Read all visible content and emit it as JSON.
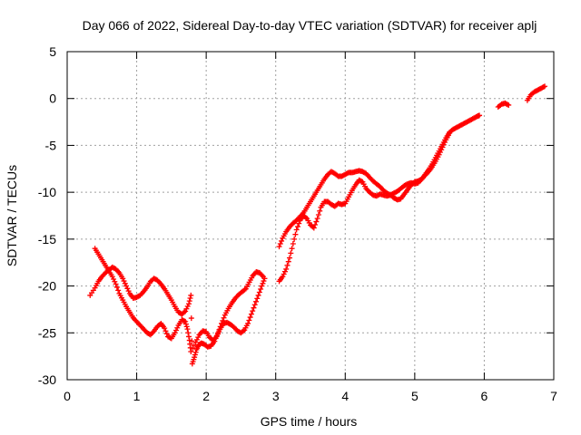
{
  "chart_data": {
    "type": "scatter",
    "title": "Day 066 of 2022, Sidereal Day-to-day VTEC variation (SDTVAR) for receiver aplj",
    "xlabel": "GPS time / hours",
    "ylabel": "SDTVAR / TECUs",
    "xlim": [
      0,
      7
    ],
    "ylim": [
      -30,
      5
    ],
    "xticks": [
      0,
      1,
      2,
      3,
      4,
      5,
      6,
      7
    ],
    "yticks": [
      5,
      0,
      -5,
      -10,
      -15,
      -20,
      -25,
      -30
    ],
    "grid": true,
    "marker": "plus",
    "series_color": "#ff0000",
    "series": [
      {
        "points": [
          [
            0.33,
            -21.0
          ],
          [
            0.4,
            -20.2
          ],
          [
            0.45,
            -19.5
          ],
          [
            0.5,
            -19.0
          ],
          [
            0.55,
            -18.6
          ],
          [
            0.6,
            -18.3
          ],
          [
            0.65,
            -18.0
          ],
          [
            0.7,
            -18.2
          ],
          [
            0.75,
            -18.6
          ],
          [
            0.8,
            -19.2
          ],
          [
            0.85,
            -20.0
          ],
          [
            0.9,
            -20.8
          ],
          [
            0.95,
            -21.3
          ],
          [
            1.0,
            -21.2
          ],
          [
            1.05,
            -21.0
          ],
          [
            1.1,
            -20.6
          ],
          [
            1.15,
            -20.1
          ],
          [
            1.2,
            -19.5
          ],
          [
            1.25,
            -19.2
          ],
          [
            1.3,
            -19.4
          ],
          [
            1.35,
            -19.8
          ],
          [
            1.4,
            -20.3
          ],
          [
            1.45,
            -20.9
          ],
          [
            1.5,
            -21.5
          ],
          [
            1.55,
            -22.2
          ],
          [
            1.6,
            -22.8
          ],
          [
            1.65,
            -23.0
          ],
          [
            1.7,
            -22.7
          ],
          [
            1.75,
            -21.9
          ],
          [
            1.78,
            -21.0
          ],
          [
            1.8,
            -28.3
          ],
          [
            1.83,
            -27.6
          ],
          [
            1.86,
            -26.8
          ],
          [
            1.89,
            -26.3
          ],
          [
            1.93,
            -26.1
          ],
          [
            1.97,
            -26.2
          ],
          [
            2.02,
            -26.5
          ],
          [
            2.07,
            -26.4
          ],
          [
            2.12,
            -25.9
          ],
          [
            2.17,
            -25.0
          ],
          [
            2.22,
            -24.0
          ],
          [
            2.27,
            -23.1
          ],
          [
            2.32,
            -22.4
          ],
          [
            2.37,
            -21.8
          ],
          [
            2.42,
            -21.3
          ],
          [
            2.47,
            -20.9
          ],
          [
            2.52,
            -20.6
          ],
          [
            2.57,
            -20.3
          ],
          [
            2.62,
            -19.6
          ],
          [
            2.67,
            -18.9
          ],
          [
            2.72,
            -18.5
          ],
          [
            2.77,
            -18.6
          ],
          [
            2.82,
            -19.0
          ]
        ]
      },
      {
        "points": [
          [
            0.4,
            -16.0
          ],
          [
            0.45,
            -16.6
          ],
          [
            0.5,
            -17.2
          ],
          [
            0.55,
            -17.8
          ],
          [
            0.6,
            -18.4
          ],
          [
            0.65,
            -19.0
          ],
          [
            0.7,
            -19.8
          ],
          [
            0.75,
            -20.8
          ],
          [
            0.8,
            -21.5
          ],
          [
            0.85,
            -22.2
          ],
          [
            0.9,
            -22.8
          ],
          [
            0.95,
            -23.4
          ],
          [
            1.0,
            -23.8
          ],
          [
            1.05,
            -24.2
          ],
          [
            1.1,
            -24.6
          ],
          [
            1.15,
            -25.0
          ],
          [
            1.2,
            -25.2
          ],
          [
            1.25,
            -24.8
          ],
          [
            1.3,
            -24.3
          ],
          [
            1.35,
            -24.0
          ],
          [
            1.4,
            -24.5
          ],
          [
            1.45,
            -25.4
          ],
          [
            1.5,
            -25.6
          ],
          [
            1.55,
            -25.0
          ],
          [
            1.6,
            -24.2
          ],
          [
            1.65,
            -23.6
          ],
          [
            1.7,
            -23.8
          ],
          [
            1.73,
            -24.6
          ],
          [
            1.76,
            -25.8
          ],
          [
            1.78,
            -27.0
          ],
          [
            1.85,
            -26.0
          ],
          [
            1.9,
            -25.2
          ],
          [
            1.95,
            -24.8
          ],
          [
            2.0,
            -24.9
          ],
          [
            2.05,
            -25.5
          ],
          [
            2.1,
            -25.8
          ],
          [
            2.15,
            -25.4
          ],
          [
            2.2,
            -24.6
          ],
          [
            2.25,
            -24.0
          ],
          [
            2.3,
            -23.9
          ],
          [
            2.35,
            -24.1
          ],
          [
            2.4,
            -24.4
          ],
          [
            2.45,
            -24.8
          ],
          [
            2.5,
            -25.0
          ],
          [
            2.55,
            -24.7
          ],
          [
            2.6,
            -24.0
          ],
          [
            2.65,
            -23.0
          ],
          [
            2.7,
            -22.0
          ],
          [
            2.75,
            -21.0
          ],
          [
            2.8,
            -20.0
          ],
          [
            2.84,
            -19.2
          ]
        ]
      },
      {
        "points": [
          [
            3.05,
            -15.8
          ],
          [
            3.1,
            -14.9
          ],
          [
            3.15,
            -14.2
          ],
          [
            3.2,
            -13.7
          ],
          [
            3.25,
            -13.3
          ],
          [
            3.3,
            -13.0
          ],
          [
            3.35,
            -12.6
          ],
          [
            3.4,
            -12.2
          ],
          [
            3.45,
            -11.6
          ],
          [
            3.5,
            -11.0
          ],
          [
            3.55,
            -10.4
          ],
          [
            3.6,
            -9.8
          ],
          [
            3.65,
            -9.2
          ],
          [
            3.7,
            -8.6
          ],
          [
            3.75,
            -8.1
          ],
          [
            3.8,
            -7.8
          ],
          [
            3.85,
            -8.0
          ],
          [
            3.9,
            -8.3
          ],
          [
            3.95,
            -8.3
          ],
          [
            4.0,
            -8.1
          ],
          [
            4.05,
            -7.9
          ],
          [
            4.1,
            -7.9
          ],
          [
            4.15,
            -7.8
          ],
          [
            4.2,
            -7.7
          ],
          [
            4.25,
            -7.8
          ],
          [
            4.3,
            -8.0
          ],
          [
            4.35,
            -8.4
          ],
          [
            4.4,
            -8.8
          ],
          [
            4.45,
            -9.1
          ],
          [
            4.5,
            -9.4
          ],
          [
            4.55,
            -9.8
          ],
          [
            4.6,
            -10.1
          ],
          [
            4.65,
            -10.3
          ],
          [
            4.7,
            -10.6
          ],
          [
            4.75,
            -10.8
          ],
          [
            4.8,
            -10.7
          ],
          [
            4.85,
            -10.2
          ],
          [
            4.9,
            -9.7
          ],
          [
            4.95,
            -9.2
          ],
          [
            5.0,
            -8.9
          ],
          [
            5.05,
            -8.8
          ],
          [
            5.1,
            -8.6
          ],
          [
            5.15,
            -8.1
          ],
          [
            5.2,
            -7.6
          ],
          [
            5.25,
            -7.0
          ],
          [
            5.3,
            -6.3
          ],
          [
            5.35,
            -5.6
          ],
          [
            5.4,
            -4.9
          ],
          [
            5.45,
            -4.2
          ],
          [
            5.5,
            -3.6
          ],
          [
            5.55,
            -3.3
          ],
          [
            5.6,
            -3.1
          ],
          [
            5.65,
            -2.9
          ],
          [
            5.7,
            -2.7
          ],
          [
            5.75,
            -2.5
          ],
          [
            5.8,
            -2.3
          ],
          [
            5.85,
            -2.1
          ],
          [
            5.9,
            -1.9
          ],
          [
            5.93,
            -1.8
          ],
          [
            6.2,
            -0.9
          ],
          [
            6.25,
            -0.6
          ],
          [
            6.3,
            -0.5
          ],
          [
            6.35,
            -0.7
          ],
          [
            6.62,
            -0.2
          ],
          [
            6.67,
            0.4
          ],
          [
            6.72,
            0.7
          ],
          [
            6.77,
            0.9
          ],
          [
            6.82,
            1.1
          ],
          [
            6.87,
            1.3
          ]
        ]
      },
      {
        "points": [
          [
            3.05,
            -19.5
          ],
          [
            3.1,
            -19.0
          ],
          [
            3.15,
            -18.2
          ],
          [
            3.2,
            -17.0
          ],
          [
            3.25,
            -15.5
          ],
          [
            3.3,
            -14.0
          ],
          [
            3.35,
            -13.0
          ],
          [
            3.4,
            -12.5
          ],
          [
            3.45,
            -12.8
          ],
          [
            3.5,
            -13.5
          ],
          [
            3.55,
            -13.8
          ],
          [
            3.6,
            -12.8
          ],
          [
            3.65,
            -11.6
          ],
          [
            3.7,
            -11.0
          ],
          [
            3.75,
            -11.0
          ],
          [
            3.8,
            -11.3
          ],
          [
            3.85,
            -11.5
          ],
          [
            3.9,
            -11.2
          ],
          [
            3.95,
            -11.3
          ],
          [
            4.0,
            -11.2
          ],
          [
            4.05,
            -10.5
          ],
          [
            4.1,
            -9.8
          ],
          [
            4.15,
            -9.2
          ],
          [
            4.2,
            -8.7
          ],
          [
            4.25,
            -8.9
          ],
          [
            4.3,
            -9.6
          ],
          [
            4.35,
            -10.0
          ],
          [
            4.4,
            -10.3
          ],
          [
            4.45,
            -10.4
          ],
          [
            4.5,
            -10.2
          ],
          [
            4.55,
            -10.3
          ],
          [
            4.6,
            -10.4
          ],
          [
            4.65,
            -10.3
          ],
          [
            4.7,
            -10.1
          ],
          [
            4.75,
            -9.9
          ],
          [
            4.8,
            -9.6
          ],
          [
            4.85,
            -9.3
          ],
          [
            4.9,
            -9.1
          ],
          [
            4.95,
            -9.0
          ],
          [
            5.0,
            -9.1
          ],
          [
            5.05,
            -9.0
          ],
          [
            5.1,
            -8.6
          ],
          [
            5.15,
            -8.2
          ],
          [
            5.2,
            -7.8
          ],
          [
            5.25,
            -7.3
          ],
          [
            5.3,
            -6.7
          ],
          [
            5.35,
            -6.0
          ],
          [
            5.4,
            -5.2
          ],
          [
            5.45,
            -4.4
          ],
          [
            5.5,
            -3.7
          ]
        ]
      }
    ]
  }
}
